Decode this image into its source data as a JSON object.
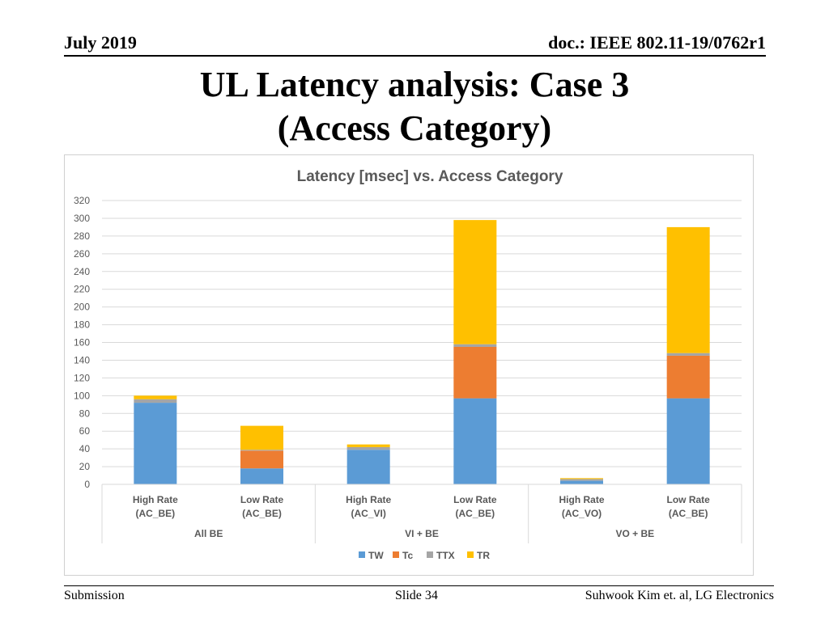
{
  "slide": {
    "date": "July 2019",
    "doc_id": "doc.: IEEE 802.11-19/0762r1",
    "title_line1": "UL Latency analysis: Case 3",
    "title_line2": "(Access Category)",
    "footer_left": "Submission",
    "footer_center": "Slide 34",
    "footer_right": "Suhwook Kim et. al, LG Electronics"
  },
  "chart_data": {
    "type": "bar",
    "stacked": true,
    "title": "Latency [msec] vs. Access Category",
    "xlabel": "",
    "ylabel": "",
    "ylim": [
      0,
      320
    ],
    "yticks": [
      0,
      20,
      40,
      60,
      80,
      100,
      120,
      140,
      160,
      180,
      200,
      220,
      240,
      260,
      280,
      300,
      320
    ],
    "grid": true,
    "legend_position": "bottom",
    "categories": [
      {
        "line1": "High Rate",
        "line2": "(AC_BE)"
      },
      {
        "line1": "Low Rate",
        "line2": "(AC_BE)"
      },
      {
        "line1": "High Rate",
        "line2": "(AC_VI)"
      },
      {
        "line1": "Low Rate",
        "line2": "(AC_BE)"
      },
      {
        "line1": "High Rate",
        "line2": "(AC_VO)"
      },
      {
        "line1": "Low Rate",
        "line2": "(AC_BE)"
      }
    ],
    "groups": [
      {
        "label": "All BE",
        "span": 2
      },
      {
        "label": "VI + BE",
        "span": 2
      },
      {
        "label": "VO + BE",
        "span": 2
      }
    ],
    "series": [
      {
        "name": "TW",
        "color": "#5B9BD5",
        "values": [
          92,
          18,
          39,
          97,
          4,
          97
        ]
      },
      {
        "name": "Tc",
        "color": "#ED7D31",
        "values": [
          0,
          20,
          0,
          58,
          0,
          48
        ]
      },
      {
        "name": "TTX",
        "color": "#A5A5A5",
        "values": [
          4,
          1,
          3,
          3,
          2,
          3
        ]
      },
      {
        "name": "TR",
        "color": "#FFC000",
        "values": [
          4,
          27,
          3,
          140,
          1,
          142
        ]
      }
    ]
  }
}
